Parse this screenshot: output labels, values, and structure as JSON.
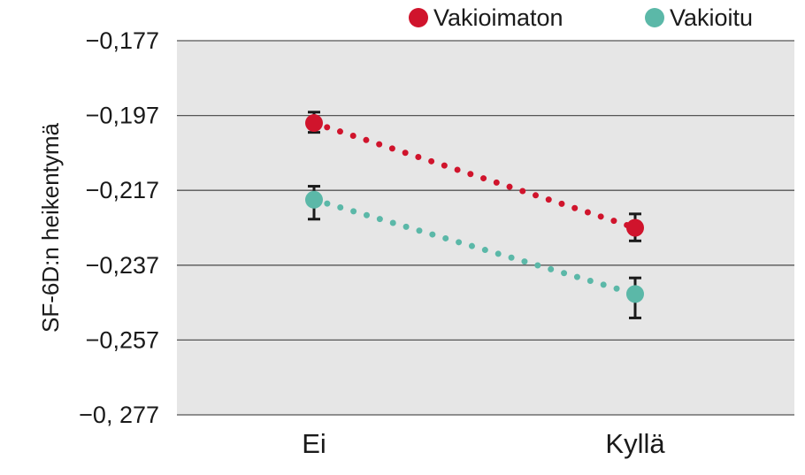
{
  "chart_data": {
    "type": "line",
    "categories": [
      "Ei",
      "Kyllä"
    ],
    "ylabel": "SF-6D:n heikentymä",
    "yticks": [
      "-0,177",
      "-0,197",
      "-0,217",
      "-0,237",
      "-0,257",
      "-0, 277"
    ],
    "ylim": [
      -0.277,
      -0.177
    ],
    "grid": true,
    "legend_position": "top-right",
    "series": [
      {
        "name": "Vakioimaton",
        "color": "#d0142c",
        "values": [
          -0.199,
          -0.227
        ],
        "err_low": [
          -0.2015,
          -0.2305
        ],
        "err_high": [
          -0.1961,
          -0.2233
        ]
      },
      {
        "name": "Vakioitu",
        "color": "#5bb8a8",
        "values": [
          -0.2195,
          -0.2447
        ],
        "err_low": [
          -0.2247,
          -0.2511
        ],
        "err_high": [
          -0.2159,
          -0.2404
        ]
      }
    ]
  },
  "colors": {
    "plot_background": "#e6e6e6",
    "gridline": "#555555",
    "errorbar": "#1a1a1a"
  }
}
